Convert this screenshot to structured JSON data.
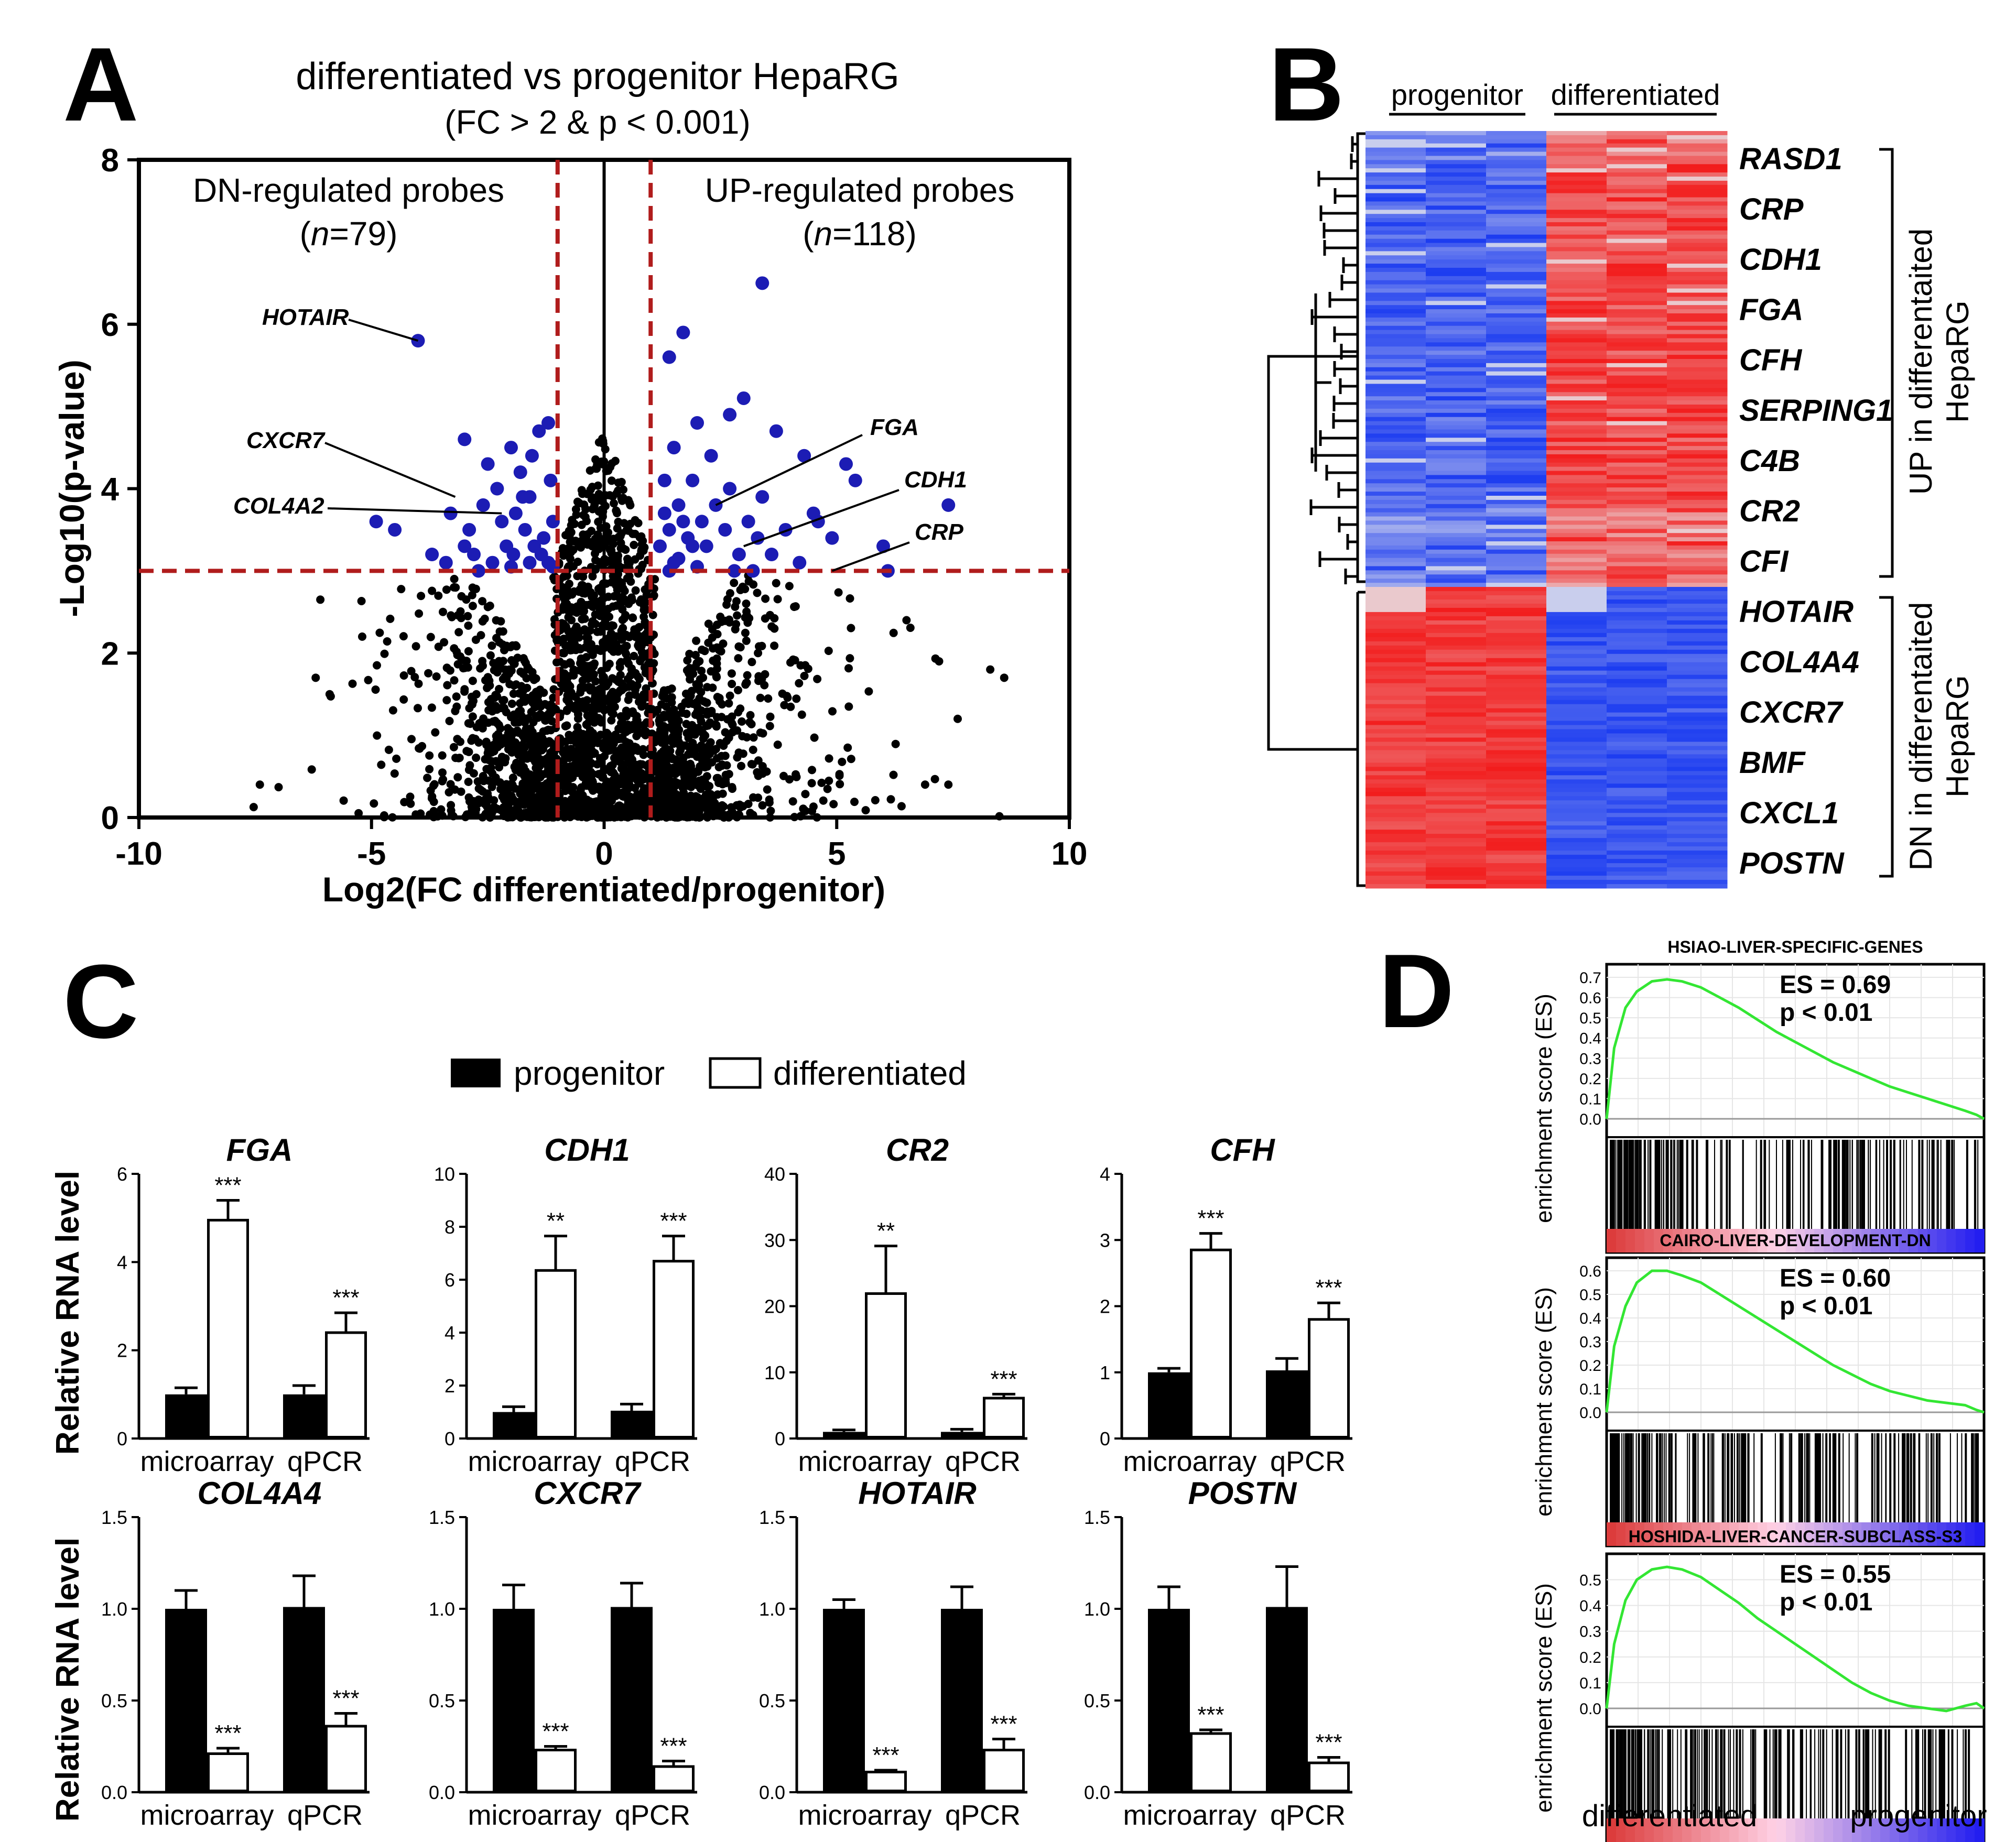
{
  "panel_letters": [
    "A",
    "B",
    "C",
    "D"
  ],
  "colors": {
    "blue_point": "#1c1cb4",
    "black_point": "#000000",
    "threshold": "#b01c1c",
    "heat_red": "#f21c1c",
    "heat_blue": "#1c3cf0",
    "gsea_line": "#33e633"
  },
  "chart_data": [
    {
      "id": "A",
      "type": "scatter",
      "title": "differentiated vs progenitor HepaRG",
      "subtitle": "(FC > 2 & p < 0.001)",
      "xlabel": "Log2(FC differentiated/progenitor)",
      "ylabel": "-Log10(p-value)",
      "xlim": [
        -10,
        10
      ],
      "ylim": [
        0,
        8
      ],
      "xticks": [
        "-10",
        "-5",
        "0",
        "5",
        "10"
      ],
      "yticks": [
        "0",
        "2",
        "4",
        "6",
        "8"
      ],
      "thresholds": {
        "x": [
          -1,
          1
        ],
        "y": 3
      },
      "regions": {
        "down": {
          "label": "DN-regulated probes",
          "n_prefix": "(",
          "n_var": "n",
          "n_value": "=79)"
        },
        "up": {
          "label": "UP-regulated probes",
          "n_prefix": "(",
          "n_var": "n",
          "n_value": "=118)"
        }
      },
      "annotations": [
        {
          "label": "HOTAIR",
          "x": -4.0,
          "y": 5.8
        },
        {
          "label": "CXCR7",
          "x": -3.2,
          "y": 3.9
        },
        {
          "label": "COL4A2",
          "x": -2.2,
          "y": 3.7
        },
        {
          "label": "FGA",
          "x": 2.4,
          "y": 3.8
        },
        {
          "label": "CDH1",
          "x": 3.0,
          "y": 3.3
        },
        {
          "label": "CRP",
          "x": 4.9,
          "y": 3.0
        }
      ],
      "highlight_points": [
        [
          -4.0,
          5.8
        ],
        [
          -3.0,
          4.6
        ],
        [
          -2.5,
          4.3
        ],
        [
          -2.3,
          4.0
        ],
        [
          -2.0,
          4.5
        ],
        [
          -1.8,
          4.2
        ],
        [
          -1.6,
          3.9
        ],
        [
          -1.4,
          4.7
        ],
        [
          -1.2,
          4.8
        ],
        [
          -1.1,
          3.6
        ],
        [
          -3.3,
          3.7
        ],
        [
          -2.9,
          3.5
        ],
        [
          -2.6,
          3.8
        ],
        [
          -2.1,
          3.3
        ],
        [
          -1.9,
          3.7
        ],
        [
          -1.7,
          3.5
        ],
        [
          -1.5,
          3.3
        ],
        [
          -1.3,
          3.4
        ],
        [
          -1.2,
          3.1
        ],
        [
          -4.9,
          3.6
        ],
        [
          -4.5,
          3.5
        ],
        [
          -3.7,
          3.2
        ],
        [
          -3.4,
          3.1
        ],
        [
          -2.8,
          3.2
        ],
        [
          -2.4,
          3.1
        ],
        [
          -2.2,
          3.6
        ],
        [
          -1.95,
          3.2
        ],
        [
          -1.75,
          3.9
        ],
        [
          -1.55,
          4.4
        ],
        [
          -1.35,
          3.2
        ],
        [
          -1.15,
          4.1
        ],
        [
          -2.7,
          3.0
        ],
        [
          -1.1,
          3.05
        ],
        [
          -3.0,
          3.3
        ],
        [
          -2.0,
          3.05
        ],
        [
          -1.6,
          3.1
        ],
        [
          3.4,
          6.5
        ],
        [
          1.7,
          5.9
        ],
        [
          1.4,
          5.6
        ],
        [
          3.0,
          5.1
        ],
        [
          2.7,
          4.9
        ],
        [
          2.0,
          4.8
        ],
        [
          3.7,
          4.7
        ],
        [
          1.5,
          4.5
        ],
        [
          2.3,
          4.4
        ],
        [
          4.3,
          4.4
        ],
        [
          5.2,
          4.3
        ],
        [
          1.3,
          4.1
        ],
        [
          1.9,
          4.1
        ],
        [
          2.7,
          4.0
        ],
        [
          3.4,
          3.9
        ],
        [
          5.4,
          4.1
        ],
        [
          7.4,
          3.8
        ],
        [
          1.6,
          3.8
        ],
        [
          2.4,
          3.8
        ],
        [
          3.1,
          3.6
        ],
        [
          4.5,
          3.7
        ],
        [
          1.4,
          3.5
        ],
        [
          1.8,
          3.4
        ],
        [
          2.2,
          3.3
        ],
        [
          3.9,
          3.5
        ],
        [
          4.9,
          3.4
        ],
        [
          1.2,
          3.3
        ],
        [
          2.9,
          3.2
        ],
        [
          3.6,
          3.2
        ],
        [
          6.0,
          3.3
        ],
        [
          1.5,
          3.1
        ],
        [
          2.0,
          3.05
        ],
        [
          4.2,
          3.1
        ],
        [
          6.1,
          3.0
        ],
        [
          1.7,
          3.6
        ],
        [
          2.6,
          3.5
        ],
        [
          1.3,
          3.7
        ],
        [
          3.3,
          3.4
        ],
        [
          1.9,
          3.3
        ],
        [
          2.8,
          3.0
        ],
        [
          4.6,
          3.6
        ],
        [
          1.6,
          3.15
        ],
        [
          2.1,
          3.6
        ],
        [
          1.4,
          3.0
        ],
        [
          3.2,
          3.0
        ]
      ]
    },
    {
      "id": "B",
      "type": "heatmap",
      "columns": [
        "progenitor",
        "differentiated"
      ],
      "up_genes": [
        "RASD1",
        "CRP",
        "CDH1",
        "FGA",
        "CFH",
        "SERPING1",
        "C4B",
        "CR2",
        "CFI"
      ],
      "down_genes": [
        "HOTAIR",
        "COL4A4",
        "CXCR7",
        "BMF",
        "CXCL1",
        "POSTN"
      ],
      "up_group_label": [
        "UP in differentaited",
        "HepaRG"
      ],
      "down_group_label": [
        "DN in differentaited",
        "HepaRG"
      ]
    },
    {
      "id": "C",
      "type": "bar",
      "legend": [
        "progenitor",
        "differentiated"
      ],
      "ylabel": "Relative RNA level",
      "categories": [
        "microarray",
        "qPCR"
      ],
      "genes": [
        {
          "gene": "FGA",
          "ymax": 6,
          "yticks": [
            "0",
            "2",
            "4",
            "6"
          ],
          "progenitor": [
            1.0,
            1.0
          ],
          "differentiated": [
            4.95,
            2.4
          ],
          "err_p": [
            0.15,
            0.2
          ],
          "err_d": [
            0.45,
            0.45
          ],
          "sig": [
            "***",
            "***"
          ]
        },
        {
          "gene": "CDH1",
          "ymax": 10,
          "yticks": [
            "0",
            "2",
            "4",
            "6",
            "8",
            "10"
          ],
          "progenitor": [
            1.0,
            1.05
          ],
          "differentiated": [
            6.35,
            6.7
          ],
          "err_p": [
            0.2,
            0.25
          ],
          "err_d": [
            1.3,
            0.95
          ],
          "sig": [
            "**",
            "***"
          ]
        },
        {
          "gene": "CR2",
          "ymax": 40,
          "yticks": [
            "0",
            "10",
            "20",
            "30",
            "40"
          ],
          "progenitor": [
            1.0,
            1.0
          ],
          "differentiated": [
            21.9,
            6.1
          ],
          "err_p": [
            0.3,
            0.4
          ],
          "err_d": [
            7.2,
            0.6
          ],
          "sig": [
            "**",
            "***"
          ]
        },
        {
          "gene": "CFH",
          "ymax": 4,
          "yticks": [
            "0",
            "1",
            "2",
            "3",
            "4"
          ],
          "progenitor": [
            1.0,
            1.03
          ],
          "differentiated": [
            2.85,
            1.8
          ],
          "err_p": [
            0.06,
            0.18
          ],
          "err_d": [
            0.25,
            0.25
          ],
          "sig": [
            "***",
            "***"
          ]
        },
        {
          "gene": "COL4A4",
          "ymax": 1.5,
          "yticks": [
            "0.0",
            "0.5",
            "1.0",
            "1.5"
          ],
          "progenitor": [
            1.0,
            1.01
          ],
          "differentiated": [
            0.21,
            0.36
          ],
          "err_p": [
            0.1,
            0.17
          ],
          "err_d": [
            0.03,
            0.07
          ],
          "sig": [
            "***",
            "***"
          ]
        },
        {
          "gene": "CXCR7",
          "ymax": 1.5,
          "yticks": [
            "0.0",
            "0.5",
            "1.0",
            "1.5"
          ],
          "progenitor": [
            1.0,
            1.01
          ],
          "differentiated": [
            0.23,
            0.14
          ],
          "err_p": [
            0.13,
            0.13
          ],
          "err_d": [
            0.02,
            0.03
          ],
          "sig": [
            "***",
            "***"
          ]
        },
        {
          "gene": "HOTAIR",
          "ymax": 1.5,
          "yticks": [
            "0.0",
            "0.5",
            "1.0",
            "1.5"
          ],
          "progenitor": [
            1.0,
            1.0
          ],
          "differentiated": [
            0.11,
            0.23
          ],
          "err_p": [
            0.05,
            0.12
          ],
          "err_d": [
            0.01,
            0.06
          ],
          "sig": [
            "***",
            "***"
          ]
        },
        {
          "gene": "POSTN",
          "ymax": 1.5,
          "yticks": [
            "0.0",
            "0.5",
            "1.0",
            "1.5"
          ],
          "progenitor": [
            1.0,
            1.01
          ],
          "differentiated": [
            0.32,
            0.16
          ],
          "err_p": [
            0.12,
            0.22
          ],
          "err_d": [
            0.02,
            0.03
          ],
          "sig": [
            "***",
            "***"
          ]
        }
      ]
    },
    {
      "id": "D",
      "type": "line",
      "ylabel": "enrichment score (ES)",
      "xlabel_left": "differentiated",
      "xlabel_right": "progenitor",
      "panels": [
        {
          "title": "HSIAO-LIVER-SPECIFIC-GENES",
          "es_text": "ES = 0.69",
          "p_text": "p < 0.01",
          "ymax": 0.7,
          "yticks": [
            "0.0",
            "0.1",
            "0.2",
            "0.3",
            "0.4",
            "0.5",
            "0.6",
            "0.7"
          ],
          "x": [
            0,
            0.02,
            0.05,
            0.08,
            0.12,
            0.16,
            0.2,
            0.25,
            0.3,
            0.35,
            0.4,
            0.45,
            0.5,
            0.55,
            0.6,
            0.65,
            0.7,
            0.75,
            0.8,
            0.85,
            0.9,
            0.95,
            0.98,
            1.0
          ],
          "y": [
            0,
            0.35,
            0.55,
            0.63,
            0.68,
            0.69,
            0.68,
            0.65,
            0.6,
            0.55,
            0.49,
            0.43,
            0.38,
            0.33,
            0.28,
            0.24,
            0.2,
            0.16,
            0.13,
            0.1,
            0.07,
            0.04,
            0.02,
            0.0
          ]
        },
        {
          "title": "CAIRO-LIVER-DEVELOPMENT-DN",
          "es_text": "ES = 0.60",
          "p_text": "p < 0.01",
          "ymax": 0.6,
          "yticks": [
            "0.0",
            "0.1",
            "0.2",
            "0.3",
            "0.4",
            "0.5",
            "0.6"
          ],
          "x": [
            0,
            0.02,
            0.05,
            0.08,
            0.12,
            0.16,
            0.2,
            0.25,
            0.3,
            0.35,
            0.4,
            0.45,
            0.5,
            0.55,
            0.6,
            0.65,
            0.7,
            0.75,
            0.8,
            0.85,
            0.9,
            0.95,
            0.98,
            1.0
          ],
          "y": [
            0,
            0.28,
            0.45,
            0.55,
            0.6,
            0.6,
            0.58,
            0.55,
            0.5,
            0.45,
            0.4,
            0.35,
            0.3,
            0.25,
            0.2,
            0.16,
            0.12,
            0.09,
            0.07,
            0.05,
            0.04,
            0.03,
            0.01,
            0.0
          ]
        },
        {
          "title": "HOSHIDA-LIVER-CANCER-SUBCLASS-S3",
          "es_text": "ES = 0.55",
          "p_text": "p < 0.01",
          "ymax": 0.55,
          "yticks": [
            "0.0",
            "0.1",
            "0.2",
            "0.3",
            "0.4",
            "0.5"
          ],
          "x": [
            0,
            0.02,
            0.05,
            0.08,
            0.12,
            0.16,
            0.2,
            0.25,
            0.3,
            0.35,
            0.4,
            0.45,
            0.5,
            0.55,
            0.6,
            0.65,
            0.7,
            0.75,
            0.8,
            0.85,
            0.9,
            0.95,
            0.98,
            1.0
          ],
          "y": [
            0,
            0.25,
            0.42,
            0.5,
            0.54,
            0.55,
            0.54,
            0.51,
            0.46,
            0.41,
            0.35,
            0.3,
            0.25,
            0.2,
            0.15,
            0.1,
            0.06,
            0.03,
            0.01,
            0.0,
            -0.01,
            0.01,
            0.02,
            0.0
          ]
        }
      ]
    }
  ]
}
